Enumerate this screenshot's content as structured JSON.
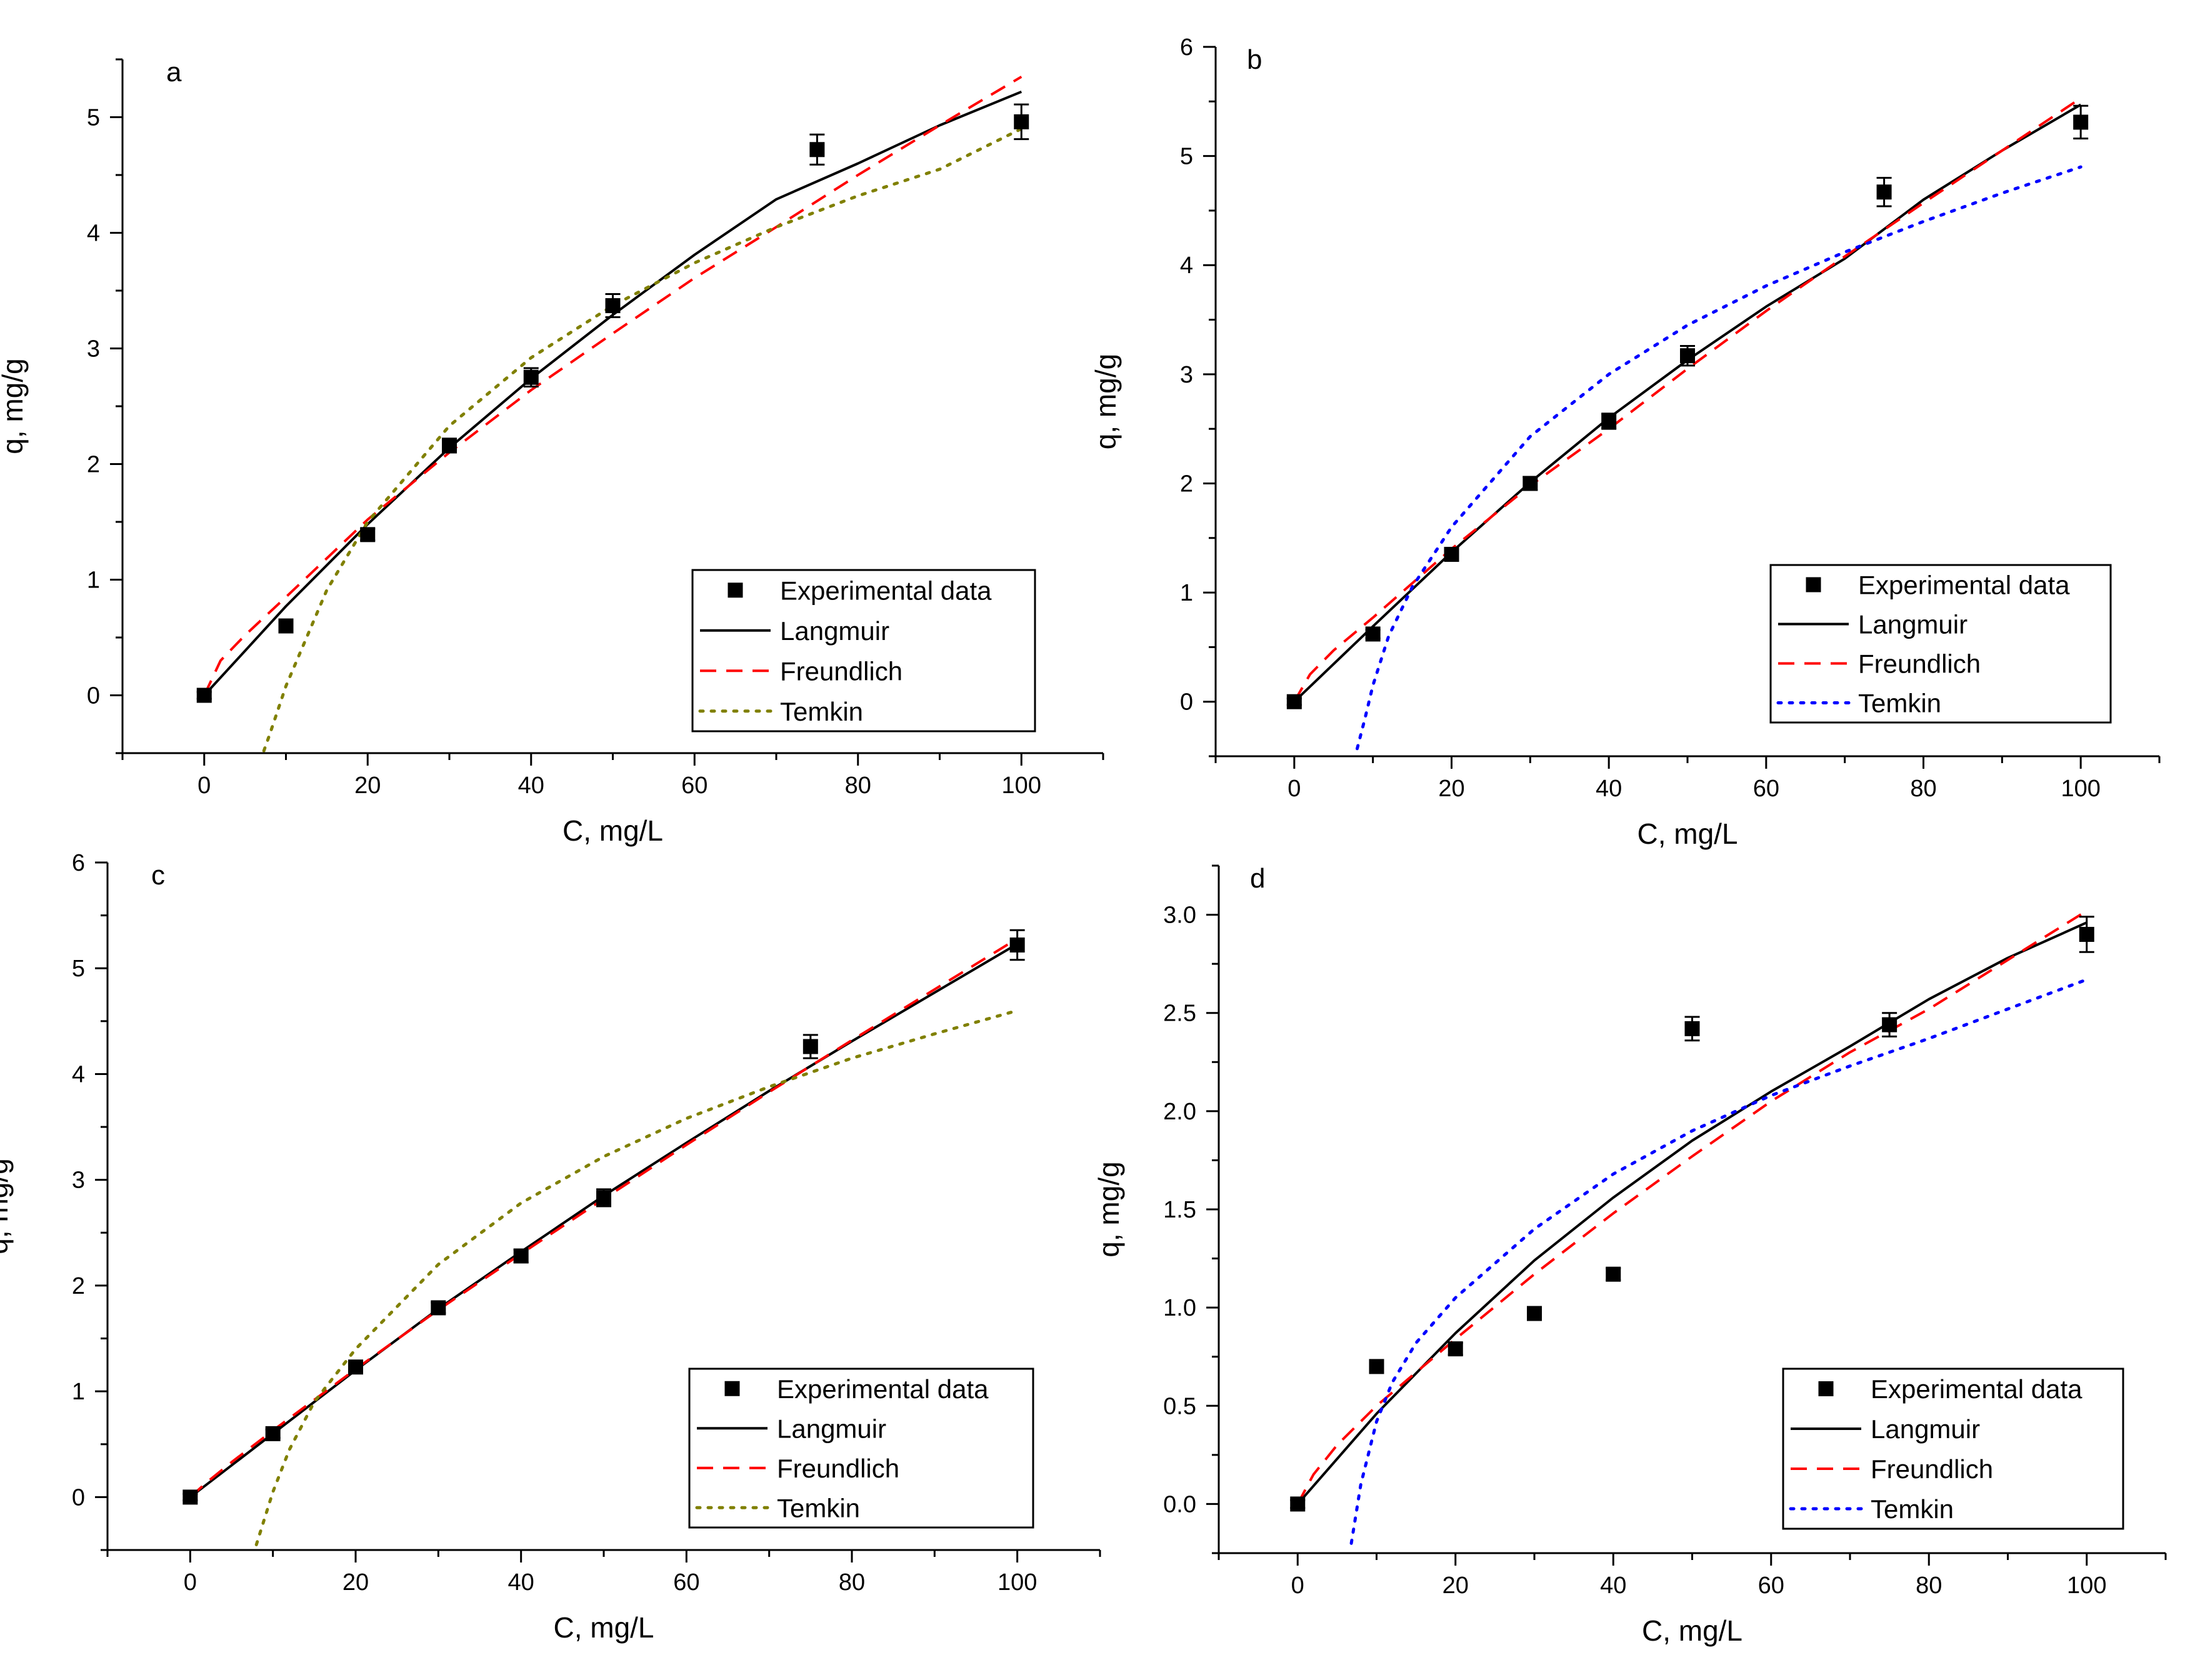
{
  "figure": {
    "colors": {
      "langmuir": "#000000",
      "freundlich": "#ff0000",
      "temkin_olive": "#808000",
      "temkin_blue": "#0000ff",
      "marker": "#000000"
    }
  },
  "chart_data": [
    {
      "type": "scatter",
      "panel": "a",
      "xlabel": "C, mg/L",
      "ylabel": "q, mg/g",
      "xlim": [
        -10,
        110
      ],
      "ylim": [
        -0.5,
        5.5
      ],
      "xticks": [
        0,
        20,
        40,
        60,
        80,
        100
      ],
      "yticks": [
        0,
        1,
        2,
        3,
        4,
        5
      ],
      "ytick_labels": [
        "0",
        "1",
        "2",
        "3",
        "4",
        "5"
      ],
      "legend_position": "bottom-right",
      "experimental": {
        "name": "Experimental data",
        "x": [
          0,
          10,
          20,
          30,
          40,
          50,
          75,
          100
        ],
        "y": [
          0,
          0.6,
          1.39,
          2.16,
          2.75,
          3.37,
          4.72,
          4.96
        ],
        "error": [
          0.03,
          0.04,
          0.05,
          0.06,
          0.08,
          0.1,
          0.13,
          0.15
        ]
      },
      "series": [
        {
          "name": "Langmuir",
          "style": "solid",
          "color": "#000000",
          "x": [
            0,
            10,
            20,
            30,
            40,
            50,
            60,
            70,
            80,
            90,
            100
          ],
          "values": [
            0,
            0.77,
            1.48,
            2.14,
            2.74,
            3.29,
            3.81,
            4.29,
            4.6,
            4.93,
            5.22
          ]
        },
        {
          "name": "Freundlich",
          "style": "dashed",
          "color": "#ff0000",
          "x": [
            0,
            2,
            5,
            10,
            20,
            30,
            40,
            50,
            60,
            70,
            80,
            90,
            100
          ],
          "values": [
            0,
            0.3,
            0.52,
            0.85,
            1.52,
            2.1,
            2.64,
            3.13,
            3.61,
            4.05,
            4.5,
            4.93,
            5.35
          ]
        },
        {
          "name": "Temkin",
          "style": "dotted",
          "color": "#808000",
          "x": [
            7.3,
            8,
            10,
            15,
            20,
            30,
            40,
            50,
            60,
            70,
            80,
            90,
            100
          ],
          "values": [
            -0.48,
            -0.34,
            0.08,
            0.91,
            1.5,
            2.33,
            2.92,
            3.37,
            3.74,
            4.05,
            4.32,
            4.55,
            4.9
          ]
        }
      ]
    },
    {
      "type": "scatter",
      "panel": "b",
      "xlabel": "C, mg/L",
      "ylabel": "q, mg/g",
      "xlim": [
        -10,
        110
      ],
      "ylim": [
        -0.5,
        6
      ],
      "xticks": [
        0,
        20,
        40,
        60,
        80,
        100
      ],
      "yticks": [
        0,
        1,
        2,
        3,
        4,
        5,
        6
      ],
      "ytick_labels": [
        "0",
        "1",
        "2",
        "3",
        "4",
        "5",
        "6"
      ],
      "legend_position": "bottom-right",
      "experimental": {
        "name": "Experimental data",
        "x": [
          0,
          10,
          20,
          30,
          40,
          50,
          75,
          100
        ],
        "y": [
          0,
          0.62,
          1.35,
          2.0,
          2.57,
          3.17,
          4.67,
          5.31
        ],
        "error": [
          0.03,
          0.04,
          0.05,
          0.06,
          0.07,
          0.09,
          0.13,
          0.15
        ]
      },
      "series": [
        {
          "name": "Langmuir",
          "style": "solid",
          "color": "#000000",
          "x": [
            0,
            10,
            20,
            30,
            40,
            50,
            60,
            70,
            80,
            90,
            100
          ],
          "values": [
            0,
            0.69,
            1.37,
            2.01,
            2.6,
            3.13,
            3.62,
            4.06,
            4.6,
            5.05,
            5.47
          ]
        },
        {
          "name": "Freundlich",
          "style": "dashed",
          "color": "#ff0000",
          "x": [
            0,
            2,
            5,
            10,
            20,
            30,
            40,
            50,
            60,
            70,
            80,
            90,
            100
          ],
          "values": [
            0,
            0.25,
            0.47,
            0.77,
            1.4,
            1.98,
            2.5,
            3.05,
            3.58,
            4.08,
            4.57,
            5.05,
            5.53
          ]
        },
        {
          "name": "Temkin",
          "style": "dotted",
          "color": "#0000ff",
          "x": [
            8,
            9,
            10,
            12,
            15,
            20,
            30,
            40,
            50,
            60,
            70,
            80,
            90,
            100
          ],
          "values": [
            -0.43,
            -0.15,
            0.15,
            0.6,
            1.05,
            1.6,
            2.43,
            3.0,
            3.45,
            3.81,
            4.12,
            4.4,
            4.66,
            4.9
          ]
        }
      ]
    },
    {
      "type": "scatter",
      "panel": "c",
      "xlabel": "C, mg/L",
      "ylabel": "q, mg/g",
      "xlim": [
        -10,
        110
      ],
      "ylim": [
        -0.5,
        6
      ],
      "xticks": [
        0,
        20,
        40,
        60,
        80,
        100
      ],
      "yticks": [
        0,
        1,
        2,
        3,
        4,
        5,
        6
      ],
      "ytick_labels": [
        "0",
        "1",
        "2",
        "3",
        "4",
        "5",
        "6"
      ],
      "legend_position": "bottom-right",
      "experimental": {
        "name": "Experimental data",
        "x": [
          0,
          10,
          20,
          30,
          40,
          50,
          75,
          100
        ],
        "y": [
          0,
          0.6,
          1.23,
          1.79,
          2.28,
          2.83,
          4.26,
          5.22
        ],
        "error": [
          0.03,
          0.04,
          0.05,
          0.05,
          0.06,
          0.08,
          0.11,
          0.14
        ]
      },
      "series": [
        {
          "name": "Langmuir",
          "style": "solid",
          "color": "#000000",
          "x": [
            0,
            10,
            20,
            30,
            40,
            50,
            60,
            70,
            80,
            90,
            100
          ],
          "values": [
            0,
            0.6,
            1.2,
            1.78,
            2.32,
            2.85,
            3.35,
            3.84,
            4.31,
            4.77,
            5.23
          ]
        },
        {
          "name": "Freundlich",
          "style": "dashed",
          "color": "#ff0000",
          "x": [
            0,
            2,
            5,
            10,
            20,
            30,
            40,
            50,
            60,
            70,
            80,
            90,
            100
          ],
          "values": [
            0,
            0.14,
            0.33,
            0.63,
            1.21,
            1.77,
            2.3,
            2.82,
            3.33,
            3.83,
            4.32,
            4.8,
            5.28
          ]
        },
        {
          "name": "Temkin",
          "style": "dotted",
          "color": "#808000",
          "x": [
            8,
            9,
            10,
            12,
            15,
            20,
            30,
            40,
            50,
            60,
            70,
            80,
            90,
            100
          ],
          "values": [
            -0.45,
            -0.2,
            0.05,
            0.45,
            0.9,
            1.4,
            2.2,
            2.78,
            3.22,
            3.58,
            3.88,
            4.15,
            4.38,
            4.6
          ]
        }
      ]
    },
    {
      "type": "scatter",
      "panel": "d",
      "xlabel": "C, mg/L",
      "ylabel": "q, mg/g",
      "xlim": [
        -10,
        110
      ],
      "ylim": [
        -0.25,
        3.25
      ],
      "xticks": [
        0,
        20,
        40,
        60,
        80,
        100
      ],
      "yticks": [
        0,
        0.5,
        1,
        1.5,
        2,
        2.5,
        3
      ],
      "ytick_labels": [
        "0.0",
        "0.5",
        "1.0",
        "1.5",
        "2.0",
        "2.5",
        "3.0"
      ],
      "legend_position": "bottom-right",
      "experimental": {
        "name": "Experimental data",
        "x": [
          0,
          10,
          20,
          30,
          40,
          50,
          75,
          100
        ],
        "y": [
          0,
          0.7,
          0.79,
          0.97,
          1.17,
          2.42,
          2.44,
          2.9
        ],
        "error": [
          0.02,
          0.02,
          0.03,
          0.03,
          0.03,
          0.06,
          0.06,
          0.09
        ]
      },
      "series": [
        {
          "name": "Langmuir",
          "style": "solid",
          "color": "#000000",
          "x": [
            0,
            10,
            20,
            30,
            40,
            50,
            60,
            70,
            80,
            90,
            100
          ],
          "values": [
            0,
            0.46,
            0.87,
            1.24,
            1.56,
            1.85,
            2.1,
            2.33,
            2.57,
            2.78,
            2.96
          ]
        },
        {
          "name": "Freundlich",
          "style": "dashed",
          "color": "#ff0000",
          "x": [
            0,
            2,
            5,
            10,
            20,
            30,
            40,
            50,
            60,
            70,
            80,
            90,
            100
          ],
          "values": [
            0,
            0.15,
            0.3,
            0.5,
            0.84,
            1.17,
            1.48,
            1.77,
            2.05,
            2.3,
            2.52,
            2.77,
            3.02
          ]
        },
        {
          "name": "Temkin",
          "style": "dotted",
          "color": "#0000ff",
          "x": [
            6.8,
            8,
            10,
            12,
            15,
            20,
            30,
            40,
            50,
            60,
            70,
            80,
            90,
            100
          ],
          "values": [
            -0.2,
            0.1,
            0.42,
            0.62,
            0.82,
            1.05,
            1.4,
            1.68,
            1.9,
            2.08,
            2.23,
            2.37,
            2.52,
            2.67
          ]
        }
      ]
    }
  ]
}
